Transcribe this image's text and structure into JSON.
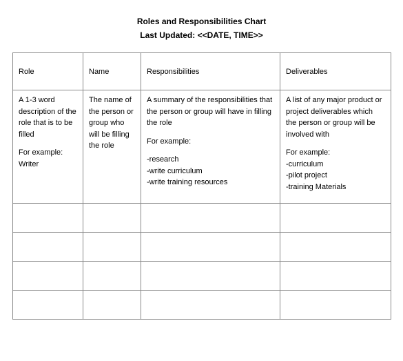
{
  "header": {
    "title": "Roles and Responsibilities Chart",
    "subtitle": "Last Updated: <<DATE, TIME>>"
  },
  "table": {
    "columns": [
      "Role",
      "Name",
      "Responsibilities",
      "Deliverables"
    ],
    "row1": {
      "role": {
        "p1": "A 1-3 word description of the role that is to be filled",
        "p2a": "For example:",
        "p2b": "Writer"
      },
      "name": {
        "p1": "The name of the person or group who will be filling the role"
      },
      "resp": {
        "p1": "A summary of the responsibilities that the person or group will have in filling the role",
        "p2": "For example:",
        "b1": "-research",
        "b2": "-write curriculum",
        "b3": "-write training resources"
      },
      "deliv": {
        "p1": "A list of any major product or project deliverables which the person or group  will be involved with",
        "p2": "For example:",
        "b1": "-curriculum",
        "b2": "-pilot project",
        "b3": "-training Materials"
      }
    }
  },
  "colors": {
    "border": "#888888",
    "text": "#000000",
    "background": "#ffffff"
  }
}
